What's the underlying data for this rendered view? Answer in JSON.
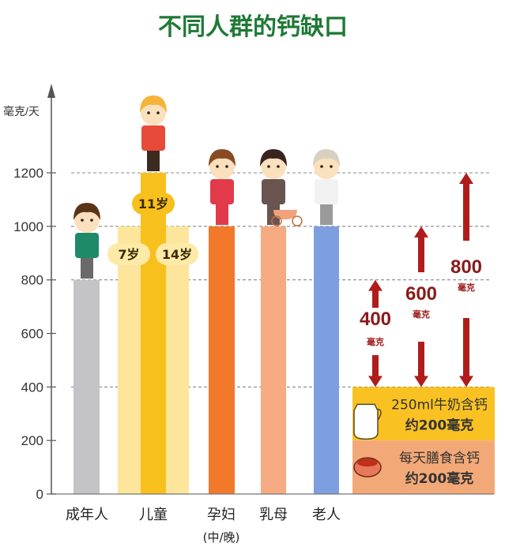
{
  "chart_data": {
    "type": "bar",
    "title": "不同人群的钙缺口",
    "ylabel": "毫克/天",
    "ylim": [
      0,
      1300
    ],
    "yticks": [
      0,
      200,
      400,
      600,
      800,
      1000,
      1200
    ],
    "gridlines": [
      400,
      800,
      1000,
      1200
    ],
    "categories": [
      "成年人",
      "儿童",
      "孕妇",
      "乳母",
      "老人"
    ],
    "category_notes": {
      "孕妇": "(中/晚)"
    },
    "bars": [
      {
        "category": "成年人",
        "label": "",
        "value": 800,
        "color": "#c4c4c6"
      },
      {
        "category": "儿童",
        "label": "7岁",
        "value": 1000,
        "color": "#fde69b"
      },
      {
        "category": "儿童",
        "label": "11岁",
        "value": 1200,
        "color": "#f8c01c"
      },
      {
        "category": "儿童",
        "label": "14岁",
        "value": 1000,
        "color": "#fde69b"
      },
      {
        "category": "孕妇",
        "label": "",
        "value": 1000,
        "color": "#f2792a"
      },
      {
        "category": "乳母",
        "label": "",
        "value": 1000,
        "color": "#f6ab82"
      },
      {
        "category": "老人",
        "label": "",
        "value": 1000,
        "color": "#7e9fdf"
      }
    ],
    "gaps": [
      {
        "value": "400",
        "unit": "毫克",
        "from": 400,
        "to": 800
      },
      {
        "value": "600",
        "unit": "毫克",
        "from": 400,
        "to": 1000
      },
      {
        "value": "800",
        "unit": "毫克",
        "from": 400,
        "to": 1200
      }
    ],
    "supply": [
      {
        "line1": "250ml牛奶含钙",
        "line2": "约200毫克",
        "from": 200,
        "to": 400,
        "color": "#f9c222",
        "icon": "milk-jug-icon"
      },
      {
        "line1": "每天膳食含钙",
        "line2": "约200毫克",
        "from": 0,
        "to": 200,
        "color": "#f3a877",
        "icon": "food-bowl-icon"
      }
    ],
    "accent": "#1f7a36",
    "arrow_color": "#b01c1c"
  }
}
